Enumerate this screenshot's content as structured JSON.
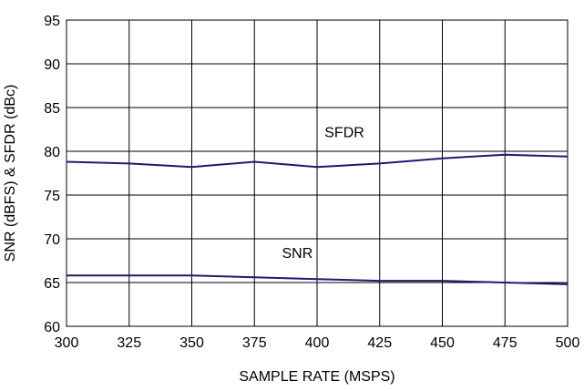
{
  "chart_data": {
    "type": "line",
    "title": "",
    "xlabel": "SAMPLE RATE (MSPS)",
    "ylabel": "SNR (dBFS) & SFDR (dBc)",
    "x": [
      300,
      325,
      350,
      375,
      400,
      425,
      450,
      475,
      500
    ],
    "xlim": [
      300,
      500
    ],
    "ylim": [
      60,
      95
    ],
    "x_ticks": [
      300,
      325,
      350,
      375,
      400,
      425,
      450,
      475,
      500
    ],
    "y_ticks": [
      60,
      65,
      70,
      75,
      80,
      85,
      90,
      95
    ],
    "grid": true,
    "legend": "none",
    "line_color": "#1f1a6e",
    "series": [
      {
        "name": "SFDR",
        "values": [
          78.8,
          78.6,
          78.2,
          78.8,
          78.2,
          78.6,
          79.2,
          79.6,
          79.4
        ],
        "label_at": [
          403,
          81.6
        ]
      },
      {
        "name": "SNR",
        "values": [
          65.8,
          65.8,
          65.8,
          65.6,
          65.4,
          65.2,
          65.2,
          65.0,
          64.8
        ],
        "label_at": [
          386,
          67.8
        ]
      }
    ]
  }
}
